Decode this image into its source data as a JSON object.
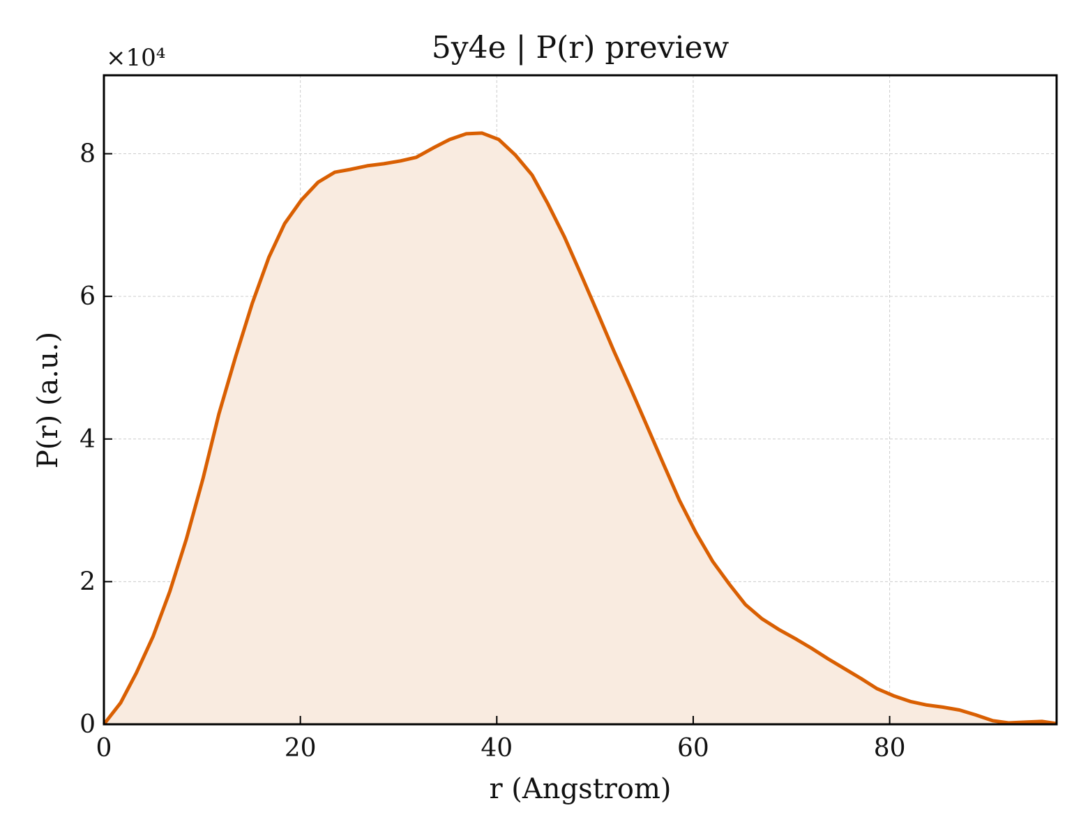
{
  "chart_data": {
    "type": "area",
    "title": "5y4e | P(r) preview",
    "xlabel": "r (Angstrom)",
    "ylabel": "P(r) (a.u.)",
    "y_scale_label": "×10⁴",
    "xlim": [
      0,
      97
    ],
    "ylim": [
      0,
      9.1
    ],
    "x_ticks": [
      0,
      20,
      40,
      60,
      80
    ],
    "x_tick_labels": [
      "0",
      "20",
      "40",
      "60",
      "80"
    ],
    "y_ticks": [
      0,
      2,
      4,
      6,
      8
    ],
    "y_tick_labels": [
      "0",
      "2",
      "4",
      "6",
      "8"
    ],
    "grid": true,
    "colors": {
      "line": "#d95f02",
      "fill": "#f9ebe0",
      "grid": "#cccccc",
      "axes": "#000000"
    },
    "series": [
      {
        "x": [
          0,
          1.7,
          3.3,
          5.0,
          6.7,
          8.4,
          10.1,
          11.7,
          13.4,
          15.1,
          16.8,
          18.4,
          20.1,
          21.8,
          23.5,
          25.1,
          26.8,
          28.5,
          30.2,
          31.8,
          33.5,
          35.2,
          36.9,
          38.5,
          40.2,
          41.9,
          43.6,
          45.2,
          46.9,
          48.6,
          50.3,
          51.9,
          53.6,
          55.3,
          57.0,
          58.6,
          60.3,
          62.0,
          63.7,
          65.3,
          67.0,
          68.7,
          70.4,
          72.0,
          73.7,
          75.4,
          77.1,
          78.7,
          80.4,
          82.1,
          83.8,
          85.4,
          87.1,
          88.8,
          90.5,
          92.1,
          93.8,
          95.5,
          97.0
        ],
        "y": [
          0.0,
          0.3,
          0.72,
          1.23,
          1.86,
          2.6,
          3.45,
          4.35,
          5.15,
          5.9,
          6.55,
          7.02,
          7.35,
          7.6,
          7.74,
          7.78,
          7.83,
          7.86,
          7.9,
          7.95,
          8.08,
          8.2,
          8.28,
          8.29,
          8.2,
          7.98,
          7.7,
          7.3,
          6.83,
          6.3,
          5.76,
          5.24,
          4.72,
          4.18,
          3.64,
          3.14,
          2.68,
          2.28,
          1.96,
          1.68,
          1.48,
          1.33,
          1.2,
          1.07,
          0.92,
          0.78,
          0.64,
          0.5,
          0.4,
          0.32,
          0.27,
          0.24,
          0.2,
          0.13,
          0.05,
          0.02,
          0.03,
          0.04,
          0.01
        ]
      }
    ]
  }
}
